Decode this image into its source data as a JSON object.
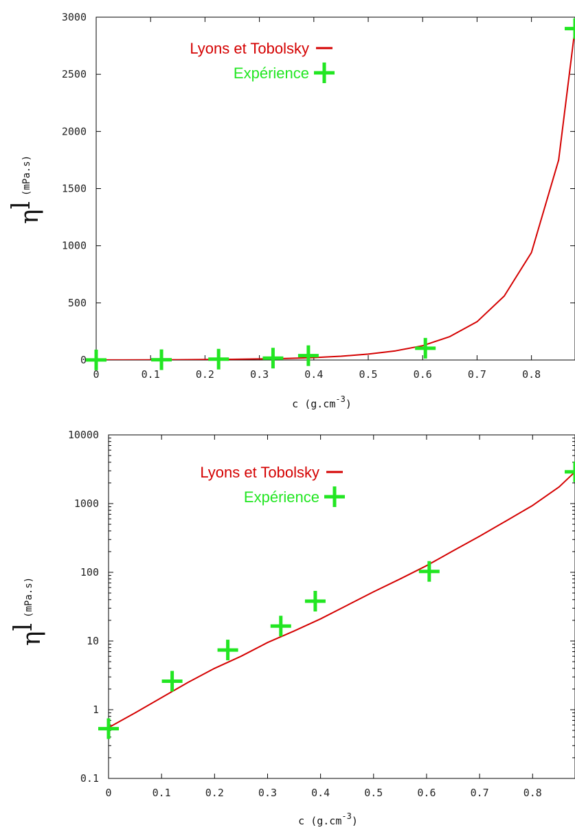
{
  "chart_data": [
    {
      "type": "line",
      "yscale": "linear",
      "xlim": [
        0,
        0.88
      ],
      "ylim": [
        0,
        3000
      ],
      "x_ticks": [
        0,
        0.1,
        0.2,
        0.3,
        0.4,
        0.5,
        0.6,
        0.7,
        0.8
      ],
      "x_tick_labels": [
        "0",
        "0.1",
        "0.2",
        "0.3",
        "0.4",
        "0.5",
        "0.6",
        "0.7",
        "0.8"
      ],
      "y_ticks": [
        0,
        500,
        1000,
        1500,
        2000,
        2500,
        3000
      ],
      "y_tick_labels": [
        "0",
        "500",
        "1000",
        "1500",
        "2000",
        "2500",
        "3000"
      ],
      "xlabel": "c (g.cm",
      "xlabel_sup": "-3",
      "xlabel_close": ")",
      "ylabel_symbol": "η",
      "ylabel_super": "l",
      "ylabel_unit": "(mPa.s)",
      "legend_position": "top-left",
      "grid": false,
      "series": [
        {
          "name": "Lyons et Tobolsky",
          "kind": "line",
          "color": "#d40000",
          "x": [
            0,
            0.05,
            0.1,
            0.15,
            0.2,
            0.25,
            0.3,
            0.35,
            0.4,
            0.45,
            0.5,
            0.55,
            0.6,
            0.65,
            0.7,
            0.75,
            0.8,
            0.85,
            0.88
          ],
          "y": [
            0.55,
            0.9,
            1.5,
            2.5,
            4,
            6,
            9.5,
            14,
            21,
            33,
            52,
            80,
            125,
            205,
            335,
            560,
            940,
            1750,
            2900
          ]
        },
        {
          "name": "Expérience",
          "kind": "scatter",
          "color": "#22e622",
          "x": [
            0,
            0.12,
            0.225,
            0.325,
            0.39,
            0.605,
            0.88
          ],
          "y": [
            0.53,
            2.6,
            7.4,
            16.5,
            38,
            103,
            2900
          ]
        }
      ]
    },
    {
      "type": "line",
      "yscale": "log",
      "xlim": [
        0,
        0.88
      ],
      "ylim": [
        0.1,
        10000
      ],
      "x_ticks": [
        0,
        0.1,
        0.2,
        0.3,
        0.4,
        0.5,
        0.6,
        0.7,
        0.8
      ],
      "x_tick_labels": [
        "0",
        "0.1",
        "0.2",
        "0.3",
        "0.4",
        "0.5",
        "0.6",
        "0.7",
        "0.8"
      ],
      "y_ticks": [
        0.1,
        1,
        10,
        100,
        1000,
        10000
      ],
      "y_tick_labels": [
        "0.1",
        "1",
        "10",
        "100",
        "1000",
        "10000"
      ],
      "xlabel": "c (g.cm",
      "xlabel_sup": "-3",
      "xlabel_close": ")",
      "ylabel_symbol": "η",
      "ylabel_super": "l",
      "ylabel_unit": "(mPa.s)",
      "legend_position": "top-left",
      "grid": false,
      "series": [
        {
          "name": "Lyons et Tobolsky",
          "kind": "line",
          "color": "#d40000",
          "x": [
            0,
            0.05,
            0.1,
            0.15,
            0.2,
            0.25,
            0.3,
            0.35,
            0.4,
            0.45,
            0.5,
            0.55,
            0.6,
            0.65,
            0.7,
            0.75,
            0.8,
            0.85,
            0.88
          ],
          "y": [
            0.55,
            0.9,
            1.5,
            2.5,
            4,
            6,
            9.5,
            14,
            21,
            33,
            52,
            80,
            125,
            205,
            335,
            560,
            940,
            1750,
            2900
          ]
        },
        {
          "name": "Expérience",
          "kind": "scatter",
          "color": "#22e622",
          "x": [
            0,
            0.12,
            0.225,
            0.325,
            0.39,
            0.605,
            0.88
          ],
          "y": [
            0.53,
            2.6,
            7.4,
            16.5,
            38,
            103,
            2900
          ]
        }
      ]
    }
  ]
}
